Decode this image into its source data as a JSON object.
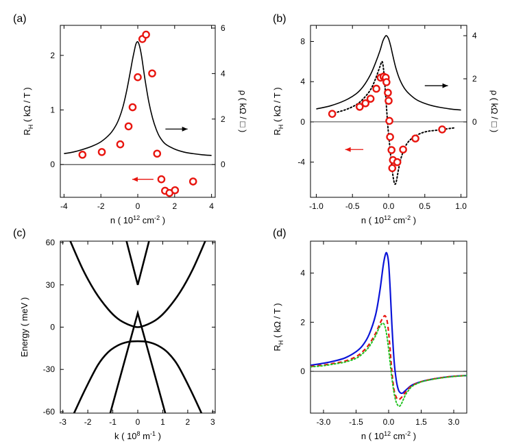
{
  "chart_data": [
    {
      "panel": "(a)",
      "type": "line+scatter",
      "xlabel": "n ( 10",
      "xlabel_sup": "12",
      "xlabel_unit": " cm",
      "xlabel_unit_sup": "-2",
      "xlabel_end": " )",
      "ylabel_left": "R",
      "ylabel_left_sub": "H",
      "ylabel_left_unit": " ( kΩ / T )",
      "ylabel_right": "ρ ( kΩ / □ )",
      "xlim": [
        -4.2,
        4.2
      ],
      "ylim": [
        -0.6,
        2.55
      ],
      "ylim_right": [
        -1.44,
        6.12
      ],
      "xticks": [
        -4,
        -2,
        0,
        2,
        4
      ],
      "yticks": [
        0,
        1,
        2
      ],
      "yticks_right": [
        0,
        2,
        4,
        6
      ],
      "hline_at": 0,
      "series": [
        {
          "kind": "line",
          "axis": "right",
          "color": "#000000",
          "x": [
            -4,
            -3.5,
            -3,
            -2.5,
            -2,
            -1.5,
            -1.2,
            -1,
            -0.8,
            -0.6,
            -0.4,
            -0.3,
            -0.2,
            -0.1,
            0,
            0.1,
            0.2,
            0.3,
            0.4,
            0.6,
            0.8,
            1,
            1.2,
            1.5,
            2,
            2.5,
            3,
            3.5,
            4
          ],
          "y": [
            0.48,
            0.55,
            0.66,
            0.8,
            1.0,
            1.35,
            1.7,
            2.05,
            2.55,
            3.25,
            4.1,
            4.55,
            4.95,
            5.3,
            5.4,
            5.2,
            4.8,
            4.25,
            3.7,
            2.75,
            2.05,
            1.55,
            1.2,
            0.9,
            0.68,
            0.55,
            0.48,
            0.43,
            0.4
          ]
        },
        {
          "kind": "scatter",
          "axis": "left",
          "color": "#e8150f",
          "x": [
            -3.0,
            -1.95,
            -0.95,
            -0.5,
            -0.28,
            0.0,
            0.25,
            0.45,
            0.78,
            1.05,
            1.28,
            1.48,
            1.72,
            2.02,
            3.0
          ],
          "y": [
            0.18,
            0.23,
            0.37,
            0.7,
            1.05,
            1.6,
            2.3,
            2.38,
            1.67,
            0.2,
            -0.27,
            -0.48,
            -0.52,
            -0.47,
            -0.31
          ]
        }
      ],
      "arrows": [
        {
          "dir": "right",
          "color": "#000000",
          "from": [
            1.5,
            0.65
          ],
          "to": [
            2.7,
            0.65
          ]
        },
        {
          "dir": "left",
          "color": "#e8150f",
          "from": [
            0.85,
            -0.27
          ],
          "to": [
            -0.3,
            -0.27
          ]
        }
      ]
    },
    {
      "panel": "(b)",
      "type": "line+scatter",
      "xlabel": "n ( 10",
      "xlabel_sup": "12",
      "xlabel_unit": " cm",
      "xlabel_unit_sup": "-2",
      "xlabel_end": " )",
      "ylabel_left": "R",
      "ylabel_left_sub": "H",
      "ylabel_left_unit": " ( kΩ / T )",
      "ylabel_right": "ρ ( kΩ / □ )",
      "xlim": [
        -1.08,
        1.08
      ],
      "ylim": [
        -7.5,
        9.6
      ],
      "ylim_right": [
        -3.5,
        4.48
      ],
      "xticks": [
        -1.0,
        -0.5,
        0.0,
        0.5,
        1.0
      ],
      "xtick_labels": [
        "-1.0",
        "-0.5",
        "0.0",
        "0.5",
        "1.0"
      ],
      "yticks": [
        -4,
        0,
        4,
        8
      ],
      "yticks_right": [
        0,
        2,
        4
      ],
      "hline_at": 0,
      "series": [
        {
          "kind": "line",
          "axis": "right",
          "color": "#000000",
          "x": [
            -1.0,
            -0.8,
            -0.6,
            -0.45,
            -0.35,
            -0.25,
            -0.18,
            -0.12,
            -0.08,
            -0.05,
            -0.03,
            0.0,
            0.03,
            0.06,
            0.1,
            0.15,
            0.22,
            0.3,
            0.4,
            0.55,
            0.7,
            0.85,
            1.0
          ],
          "y": [
            0.6,
            0.75,
            1.0,
            1.3,
            1.65,
            2.2,
            2.75,
            3.3,
            3.75,
            3.95,
            4.0,
            3.85,
            3.5,
            3.05,
            2.5,
            2.0,
            1.55,
            1.25,
            1.0,
            0.8,
            0.68,
            0.6,
            0.55
          ]
        },
        {
          "kind": "dotted",
          "axis": "left",
          "color": "#000000",
          "x": [
            -0.8,
            -0.6,
            -0.45,
            -0.35,
            -0.25,
            -0.18,
            -0.12,
            -0.09,
            -0.07,
            -0.05,
            -0.03,
            -0.01,
            0.01,
            0.03,
            0.05,
            0.07,
            0.09,
            0.11,
            0.14,
            0.18,
            0.25,
            0.35,
            0.5,
            0.7,
            0.9
          ],
          "y": [
            0.8,
            1.2,
            1.7,
            2.3,
            3.2,
            4.3,
            5.5,
            6.0,
            5.2,
            3.5,
            1.5,
            -0.5,
            -2.0,
            -3.5,
            -4.8,
            -5.8,
            -6.2,
            -5.8,
            -4.6,
            -3.4,
            -2.2,
            -1.5,
            -1.0,
            -0.8,
            -0.6
          ]
        },
        {
          "kind": "scatter",
          "axis": "left",
          "color": "#e8150f",
          "x": [
            -0.78,
            -0.4,
            -0.32,
            -0.25,
            -0.17,
            -0.11,
            -0.07,
            -0.04,
            -0.03,
            -0.01,
            0.0,
            0.01,
            0.02,
            0.04,
            0.06,
            0.12,
            0.2,
            0.37,
            0.74
          ],
          "y": [
            0.8,
            1.5,
            1.85,
            2.3,
            3.3,
            4.4,
            4.5,
            4.4,
            3.95,
            2.9,
            2.1,
            0.1,
            -1.5,
            -2.8,
            -3.8,
            -4.0,
            -2.75,
            -1.65,
            -0.75
          ]
        },
        {
          "kind": "scatter",
          "axis": "left",
          "color": "#e8150f",
          "x": [
            0.05
          ],
          "y": [
            -4.6
          ]
        }
      ],
      "arrows": [
        {
          "dir": "right",
          "color": "#000000",
          "from": [
            0.5,
            3.6
          ],
          "to": [
            0.82,
            3.6
          ]
        },
        {
          "dir": "left",
          "color": "#e8150f",
          "from": [
            -0.35,
            -2.75
          ],
          "to": [
            -0.6,
            -2.75
          ]
        }
      ]
    },
    {
      "panel": "(c)",
      "type": "line",
      "xlabel": "k ( 10",
      "xlabel_sup": "8",
      "xlabel_unit": " m",
      "xlabel_unit_sup": "-1",
      "xlabel_end": " )",
      "ylabel": "Energy ( meV )",
      "xlim": [
        -3.1,
        3.1
      ],
      "ylim": [
        -61,
        61
      ],
      "xticks": [
        -3,
        -2,
        -1,
        0,
        1,
        2,
        3
      ],
      "yticks": [
        -60,
        -30,
        0,
        30,
        60
      ],
      "series": [
        {
          "kind": "curve",
          "name": "",
          "color": "#000000",
          "x": [
            -2.7,
            -2.2,
            -1.7,
            -1.2,
            -0.8,
            -0.4,
            0,
            0.4,
            0.8,
            1.2,
            1.7,
            2.2,
            2.7
          ],
          "y": [
            61,
            41,
            25,
            13,
            6,
            2,
            0,
            2,
            6,
            13,
            25,
            41,
            61
          ]
        },
        {
          "kind": "curve",
          "name": "",
          "color": "#000000",
          "x": [
            -2.55,
            -2.1,
            -1.6,
            -1.2,
            -0.8,
            -0.4,
            0,
            0.4,
            0.8,
            1.2,
            1.6,
            2.1,
            2.55
          ],
          "y": [
            -61,
            -44,
            -27,
            -18,
            -13,
            -10.5,
            -10,
            -10.5,
            -13,
            -18,
            -27,
            -44,
            -61
          ]
        },
        {
          "kind": "curve",
          "name": "",
          "color": "#000000",
          "x": [
            -1.1,
            0,
            1.1
          ],
          "y": [
            -61,
            10,
            -61
          ]
        },
        {
          "kind": "curve",
          "name": "",
          "color": "#000000",
          "x": [
            -0.45,
            0,
            0.45
          ],
          "y": [
            61,
            30,
            61
          ]
        }
      ]
    },
    {
      "panel": "(d)",
      "type": "line",
      "xlabel": "n ( 10",
      "xlabel_sup": "12",
      "xlabel_unit": " cm",
      "xlabel_unit_sup": "-2",
      "xlabel_end": " )",
      "ylabel_left": "R",
      "ylabel_left_sub": "H",
      "ylabel_left_unit": " ( kΩ / T )",
      "xlim": [
        -3.6,
        3.6
      ],
      "ylim": [
        -1.7,
        5.3
      ],
      "xticks": [
        -3.0,
        -1.5,
        0.0,
        1.5,
        3.0
      ],
      "xtick_labels": [
        "-3.0",
        "-1.5",
        "0.0",
        "1.5",
        "3.0"
      ],
      "yticks": [
        0,
        2,
        4
      ],
      "hline_at": 0,
      "series": [
        {
          "kind": "solid",
          "color": "#0a14d8",
          "x": [
            -3.6,
            -3,
            -2.5,
            -2,
            -1.5,
            -1.2,
            -0.9,
            -0.6,
            -0.4,
            -0.25,
            -0.15,
            -0.08,
            0,
            0.08,
            0.15,
            0.25,
            0.35,
            0.45,
            0.55,
            0.65,
            0.75,
            0.9,
            1.1,
            1.5,
            2,
            2.5,
            3,
            3.6
          ],
          "y": [
            0.25,
            0.33,
            0.42,
            0.55,
            0.8,
            1.05,
            1.5,
            2.3,
            3.3,
            4.3,
            4.75,
            4.8,
            4.4,
            3.2,
            1.9,
            0.45,
            -0.35,
            -0.75,
            -0.88,
            -0.88,
            -0.8,
            -0.68,
            -0.55,
            -0.42,
            -0.32,
            -0.25,
            -0.2,
            -0.17
          ]
        },
        {
          "kind": "dashed",
          "color": "#e8150f",
          "x": [
            -3.6,
            -3,
            -2.5,
            -2,
            -1.5,
            -1.2,
            -0.9,
            -0.6,
            -0.4,
            -0.25,
            -0.15,
            -0.05,
            0.05,
            0.15,
            0.25,
            0.35,
            0.45,
            0.55,
            0.65,
            0.75,
            0.9,
            1.1,
            1.5,
            2,
            2.5,
            3,
            3.6
          ],
          "y": [
            0.2,
            0.26,
            0.33,
            0.42,
            0.6,
            0.8,
            1.1,
            1.55,
            1.95,
            2.2,
            2.25,
            1.95,
            1.1,
            0.0,
            -0.75,
            -1.05,
            -1.15,
            -1.1,
            -1.0,
            -0.88,
            -0.72,
            -0.57,
            -0.42,
            -0.32,
            -0.25,
            -0.2,
            -0.17
          ]
        },
        {
          "kind": "dotted",
          "color": "#22c322",
          "x": [
            -3.6,
            -3,
            -2.5,
            -2,
            -1.5,
            -1.2,
            -0.9,
            -0.6,
            -0.45,
            -0.3,
            -0.2,
            -0.1,
            0.0,
            0.1,
            0.2,
            0.3,
            0.4,
            0.5,
            0.6,
            0.7,
            0.8,
            0.95,
            1.1,
            1.5,
            2,
            2.5,
            3,
            3.6
          ],
          "y": [
            0.18,
            0.23,
            0.3,
            0.38,
            0.53,
            0.72,
            1.0,
            1.45,
            1.75,
            1.95,
            1.9,
            1.55,
            0.9,
            0.1,
            -0.6,
            -1.1,
            -1.35,
            -1.42,
            -1.3,
            -1.1,
            -0.92,
            -0.74,
            -0.6,
            -0.43,
            -0.33,
            -0.26,
            -0.21,
            -0.17
          ]
        }
      ]
    }
  ]
}
